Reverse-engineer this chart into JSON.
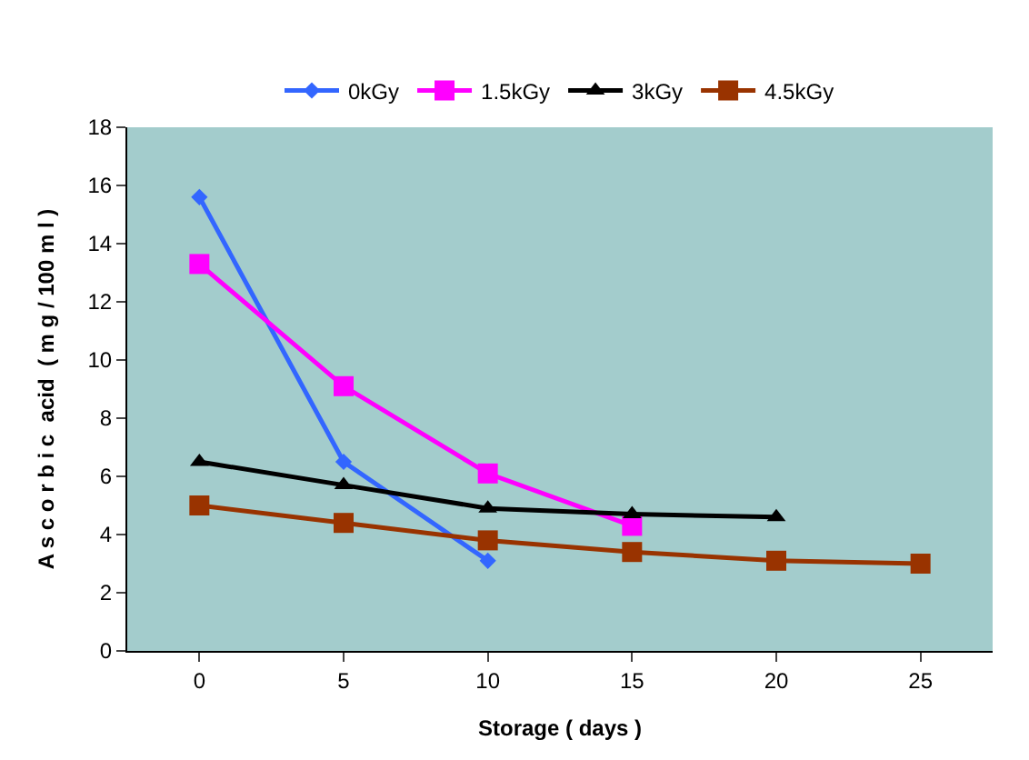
{
  "chart_data": {
    "type": "line",
    "xlabel": "Storage ( days )",
    "ylabel": "A s c o r b i c  acid  ( m g / 100 m l )",
    "categories": [
      "0",
      "5",
      "10",
      "15",
      "20",
      "25"
    ],
    "ylim": [
      0,
      18
    ],
    "yticks": [
      0,
      2,
      4,
      6,
      8,
      10,
      12,
      14,
      16,
      18
    ],
    "grid": false,
    "legend": "top",
    "series": [
      {
        "name": "0kGy",
        "color": "#3366ff",
        "marker": "diamond",
        "values": [
          15.6,
          6.5,
          3.1,
          null,
          null,
          null
        ]
      },
      {
        "name": "1.5kGy",
        "color": "#ff00ff",
        "marker": "square",
        "values": [
          13.3,
          9.1,
          6.1,
          4.3,
          null,
          null
        ]
      },
      {
        "name": "3kGy",
        "color": "#000000",
        "marker": "triangle",
        "values": [
          6.5,
          5.7,
          4.9,
          4.7,
          4.6,
          null
        ]
      },
      {
        "name": "4.5kGy",
        "color": "#993300",
        "marker": "square",
        "values": [
          5.0,
          4.4,
          3.8,
          3.4,
          3.1,
          3.0
        ]
      }
    ]
  }
}
